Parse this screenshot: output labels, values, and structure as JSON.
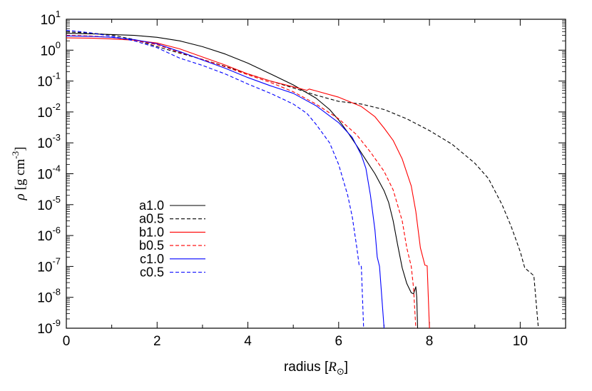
{
  "chart_data": {
    "type": "line",
    "title": "",
    "xlabel_text": "radius [",
    "xlabel_symbol": "R",
    "xlabel_sub": "⊙",
    "xlabel_close": "]",
    "ylabel_symbol": "ρ",
    "ylabel_text": " [g cm",
    "ylabel_sup": "-3",
    "ylabel_close": "]",
    "xlim": [
      0,
      11
    ],
    "ylim_log10": [
      -9,
      1
    ],
    "yscale": "log",
    "grid": false,
    "legend_position": "center-left",
    "x_ticks": [
      {
        "value": 0,
        "label": "0"
      },
      {
        "value": 2,
        "label": "2"
      },
      {
        "value": 4,
        "label": "4"
      },
      {
        "value": 6,
        "label": "6"
      },
      {
        "value": 8,
        "label": "8"
      },
      {
        "value": 10,
        "label": "10"
      }
    ],
    "y_ticks": [
      {
        "exp": 1,
        "base": "10",
        "sup": "1"
      },
      {
        "exp": 0,
        "base": "10",
        "sup": "0"
      },
      {
        "exp": -1,
        "base": "10",
        "sup": "-1"
      },
      {
        "exp": -2,
        "base": "10",
        "sup": "-2"
      },
      {
        "exp": -3,
        "base": "10",
        "sup": "-3"
      },
      {
        "exp": -4,
        "base": "10",
        "sup": "-4"
      },
      {
        "exp": -5,
        "base": "10",
        "sup": "-5"
      },
      {
        "exp": -6,
        "base": "10",
        "sup": "-6"
      },
      {
        "exp": -7,
        "base": "10",
        "sup": "-7"
      },
      {
        "exp": -8,
        "base": "10",
        "sup": "-8"
      },
      {
        "exp": -9,
        "base": "10",
        "sup": "-9"
      }
    ],
    "series": [
      {
        "name": "a1.0",
        "color": "#000000",
        "dash": "solid",
        "points": [
          [
            0,
            3.5
          ],
          [
            0.5,
            3.4
          ],
          [
            1,
            3.2
          ],
          [
            1.5,
            3.0
          ],
          [
            2,
            2.6
          ],
          [
            2.5,
            2.0
          ],
          [
            3,
            1.3
          ],
          [
            3.5,
            0.75
          ],
          [
            4,
            0.38
          ],
          [
            4.5,
            0.17
          ],
          [
            5,
            0.075
          ],
          [
            5.5,
            0.028
          ],
          [
            5.8,
            0.012
          ],
          [
            6,
            0.0055
          ],
          [
            6.2,
            0.0022
          ],
          [
            6.4,
            0.0008
          ],
          [
            6.6,
            0.00028
          ],
          [
            6.8,
            0.0001
          ],
          [
            7,
            2.8e-05
          ],
          [
            7.1,
            1.2e-05
          ],
          [
            7.2,
            3e-06
          ],
          [
            7.3,
            5e-07
          ],
          [
            7.4,
            9e-08
          ],
          [
            7.5,
            2.8e-08
          ],
          [
            7.6,
            1.4e-08
          ],
          [
            7.65,
            1.3e-08
          ],
          [
            7.7,
            2.2e-08
          ],
          [
            7.72,
            1e-08
          ],
          [
            7.74,
            1e-09
          ]
        ]
      },
      {
        "name": "a0.5",
        "color": "#000000",
        "dash": "dashed",
        "points": [
          [
            0,
            3.9
          ],
          [
            0.5,
            3.6
          ],
          [
            1,
            3.1
          ],
          [
            1.5,
            2.2
          ],
          [
            2,
            1.3
          ],
          [
            2.5,
            0.8
          ],
          [
            3,
            0.5
          ],
          [
            3.5,
            0.3
          ],
          [
            4,
            0.17
          ],
          [
            4.5,
            0.1
          ],
          [
            5,
            0.06
          ],
          [
            5.5,
            0.035
          ],
          [
            6,
            0.022
          ],
          [
            6.5,
            0.018
          ],
          [
            7,
            0.012
          ],
          [
            7.5,
            0.006
          ],
          [
            8,
            0.0025
          ],
          [
            8.5,
            0.0009
          ],
          [
            9,
            0.00022
          ],
          [
            9.3,
            7e-05
          ],
          [
            9.6,
            1e-05
          ],
          [
            9.8,
            2e-06
          ],
          [
            10,
            3e-07
          ],
          [
            10.1,
            9e-08
          ],
          [
            10.3,
            5e-08
          ],
          [
            10.4,
            1e-09
          ]
        ]
      },
      {
        "name": "b1.0",
        "color": "#ff0000",
        "dash": "solid",
        "points": [
          [
            0,
            2.5
          ],
          [
            0.5,
            2.45
          ],
          [
            1,
            2.3
          ],
          [
            1.5,
            2.1
          ],
          [
            2,
            1.7
          ],
          [
            2.5,
            1.1
          ],
          [
            3,
            0.6
          ],
          [
            3.5,
            0.33
          ],
          [
            4,
            0.17
          ],
          [
            4.5,
            0.1
          ],
          [
            5,
            0.065
          ],
          [
            5.3,
            0.05
          ],
          [
            5.35,
            0.055
          ],
          [
            5.5,
            0.048
          ],
          [
            6,
            0.03
          ],
          [
            6.5,
            0.015
          ],
          [
            6.8,
            0.007
          ],
          [
            7,
            0.003
          ],
          [
            7.2,
            0.0012
          ],
          [
            7.4,
            0.0003
          ],
          [
            7.6,
            4e-05
          ],
          [
            7.7,
            6e-06
          ],
          [
            7.8,
            4e-07
          ],
          [
            7.9,
            1.1e-07
          ],
          [
            7.95,
            1.05e-07
          ],
          [
            8.0,
            1e-09
          ]
        ]
      },
      {
        "name": "b0.5",
        "color": "#ff0000",
        "dash": "dashed",
        "points": [
          [
            0,
            3.0
          ],
          [
            0.5,
            2.9
          ],
          [
            1,
            2.6
          ],
          [
            1.5,
            2.1
          ],
          [
            2,
            1.5
          ],
          [
            2.5,
            0.85
          ],
          [
            3,
            0.5
          ],
          [
            3.5,
            0.29
          ],
          [
            4,
            0.16
          ],
          [
            4.5,
            0.09
          ],
          [
            5,
            0.045
          ],
          [
            5.5,
            0.018
          ],
          [
            6,
            0.006
          ],
          [
            6.4,
            0.0018
          ],
          [
            6.7,
            0.0005
          ],
          [
            7,
            0.00012
          ],
          [
            7.2,
            3e-05
          ],
          [
            7.4,
            3e-06
          ],
          [
            7.5,
            4e-07
          ],
          [
            7.6,
            1e-07
          ],
          [
            7.65,
            2e-08
          ],
          [
            7.7,
            1e-09
          ]
        ]
      },
      {
        "name": "c1.0",
        "color": "#0000ff",
        "dash": "solid",
        "points": [
          [
            0,
            2.9
          ],
          [
            0.5,
            2.8
          ],
          [
            1,
            2.6
          ],
          [
            1.5,
            2.2
          ],
          [
            2,
            1.6
          ],
          [
            2.5,
            0.9
          ],
          [
            3,
            0.48
          ],
          [
            3.5,
            0.26
          ],
          [
            4,
            0.13
          ],
          [
            4.5,
            0.07
          ],
          [
            5,
            0.04
          ],
          [
            5.5,
            0.016
          ],
          [
            6,
            0.0045
          ],
          [
            6.3,
            0.0015
          ],
          [
            6.5,
            0.0004
          ],
          [
            6.6,
            0.00015
          ],
          [
            6.7,
            2e-05
          ],
          [
            6.8,
            1.5e-06
          ],
          [
            6.85,
            2e-07
          ],
          [
            6.9,
            1e-07
          ],
          [
            6.95,
            1e-08
          ],
          [
            7.0,
            1e-09
          ]
        ]
      },
      {
        "name": "c0.5",
        "color": "#0000ff",
        "dash": "dashed",
        "points": [
          [
            0,
            4.4
          ],
          [
            0.5,
            3.7
          ],
          [
            1,
            2.8
          ],
          [
            1.5,
            2.0
          ],
          [
            2,
            1.2
          ],
          [
            2.5,
            0.55
          ],
          [
            3,
            0.32
          ],
          [
            3.5,
            0.17
          ],
          [
            4,
            0.08
          ],
          [
            4.5,
            0.04
          ],
          [
            5,
            0.018
          ],
          [
            5.3,
            0.009
          ],
          [
            5.5,
            0.004
          ],
          [
            5.8,
            0.001
          ],
          [
            6,
            0.0002
          ],
          [
            6.2,
            2e-05
          ],
          [
            6.3,
            4e-06
          ],
          [
            6.4,
            4e-07
          ],
          [
            6.45,
            1.1e-07
          ],
          [
            6.5,
            1e-07
          ],
          [
            6.55,
            1e-09
          ]
        ]
      }
    ]
  }
}
